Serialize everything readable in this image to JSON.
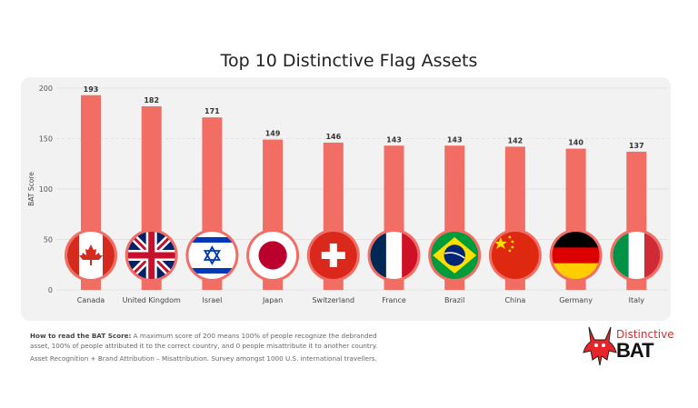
{
  "chart_data": {
    "type": "bar",
    "title": "Top 10 Distinctive Flag Assets",
    "ylabel": "BAT Score",
    "xlabel": "",
    "ylim": [
      0,
      200
    ],
    "yticks": [
      0,
      50,
      100,
      150,
      200
    ],
    "grid": true,
    "categories": [
      "Canada",
      "United Kingdom",
      "Israel",
      "Japan",
      "Switzerland",
      "France",
      "Brazil",
      "China",
      "Germany",
      "Italy"
    ],
    "values": [
      193,
      182,
      171,
      149,
      146,
      143,
      143,
      142,
      140,
      137
    ],
    "bar_color": "#f26d63"
  },
  "notes": {
    "how_to_label": "How to read the BAT Score:",
    "how_to_text": " A maximum score of 200 means 100% of people recognize the debranded asset, 100% of people attributed it to the correct country, and 0 people misattribute it to another country.",
    "formula": "Asset Recognition + Brand Attribution – Misattribution. Survey amongst 1000 U.S. international travellers."
  },
  "logo": {
    "line1": "Distinctive",
    "line2": "BAT",
    "color": "#e8262a"
  }
}
